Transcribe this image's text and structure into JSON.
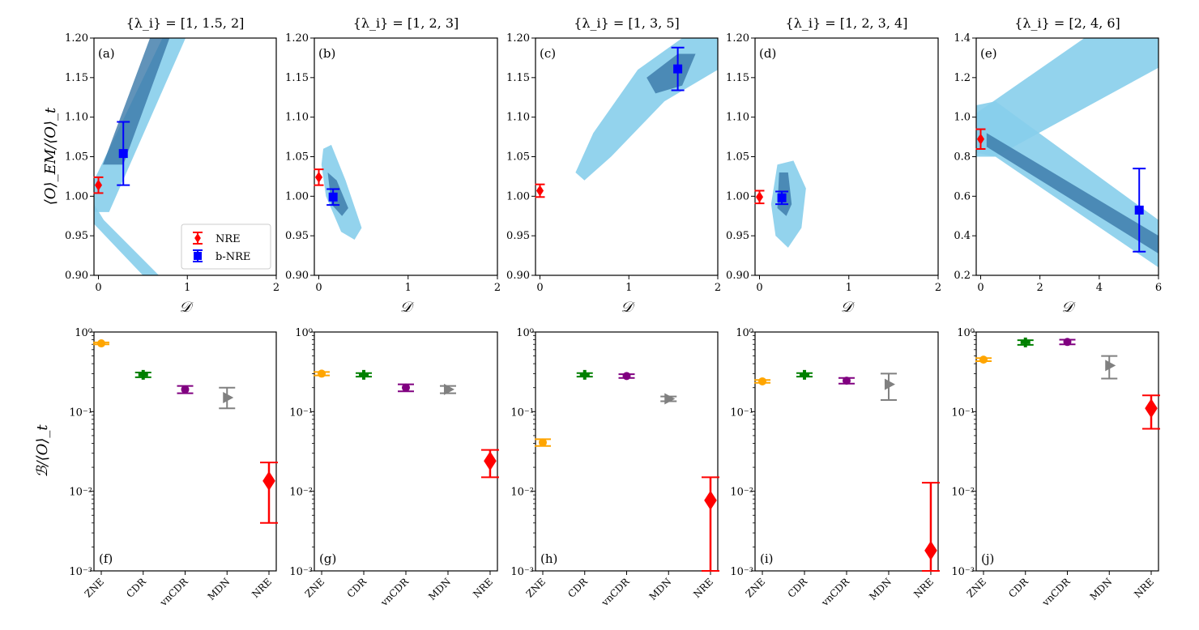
{
  "colors": {
    "nre": "#ff0000",
    "bnre": "#0000ff",
    "band_light": "#87ceeb",
    "band_dark": "#3a78a8",
    "zne": "#ffa500",
    "cdr": "#008000",
    "vncdr": "#800080",
    "mdn": "#808080"
  },
  "legend": {
    "nre_label": "NRE",
    "bnre_label": "b-NRE"
  },
  "top_panels": [
    {
      "label": "(a)",
      "title": "{λ_i} = [1, 1.5, 2]",
      "xlabel": "𝒟",
      "ylabel": "⟨O⟩_EM/⟨O⟩_t",
      "xlim": [
        -0.05,
        2
      ],
      "ylim": [
        0.9,
        1.2
      ],
      "xticks": [
        "0",
        "1",
        "2"
      ],
      "xtick_vals": [
        0,
        1,
        2
      ],
      "yticks": [
        "0.90",
        "0.95",
        "1.00",
        "1.05",
        "1.10",
        "1.15",
        "1.20"
      ],
      "ytick_vals": [
        0.9,
        0.95,
        1.0,
        1.05,
        1.1,
        1.15,
        1.2
      ],
      "nre": {
        "x": 0.0,
        "y": 1.014,
        "lo": 1.004,
        "hi": 1.024
      },
      "bnre": {
        "x": 0.28,
        "y": 1.054,
        "lo": 1.014,
        "hi": 1.094
      },
      "show_legend": true,
      "bands": [
        {
          "light": [
            [
              -0.05,
              1.02
            ],
            [
              0.72,
              1.2
            ],
            [
              0.98,
              1.2
            ],
            [
              0.12,
              0.98
            ],
            [
              -0.05,
              0.98
            ]
          ],
          "dark": [
            [
              0.05,
              1.04
            ],
            [
              0.58,
              1.2
            ],
            [
              0.8,
              1.2
            ],
            [
              0.28,
              1.04
            ]
          ]
        },
        {
          "light": [
            [
              -0.05,
              0.99
            ],
            [
              0.06,
              0.97
            ],
            [
              0.68,
              0.9
            ],
            [
              0.5,
              0.9
            ],
            [
              -0.05,
              0.965
            ]
          ],
          "dark": []
        }
      ]
    },
    {
      "label": "(b)",
      "title": "{λ_i} = [1, 2, 3]",
      "xlabel": "𝒟",
      "ylabel": "",
      "xlim": [
        -0.05,
        2
      ],
      "ylim": [
        0.9,
        1.2
      ],
      "xticks": [
        "0",
        "1",
        "2"
      ],
      "xtick_vals": [
        0,
        1,
        2
      ],
      "yticks": [
        "0.90",
        "0.95",
        "1.00",
        "1.05",
        "1.10",
        "1.15",
        "1.20"
      ],
      "ytick_vals": [
        0.9,
        0.95,
        1.0,
        1.05,
        1.1,
        1.15,
        1.2
      ],
      "nre": {
        "x": 0.0,
        "y": 1.024,
        "lo": 1.014,
        "hi": 1.034
      },
      "bnre": {
        "x": 0.16,
        "y": 0.999,
        "lo": 0.989,
        "hi": 1.009
      },
      "show_legend": false,
      "bands": [
        {
          "light": [
            [
              0.05,
              1.06
            ],
            [
              0.14,
              1.065
            ],
            [
              0.3,
              1.02
            ],
            [
              0.48,
              0.96
            ],
            [
              0.4,
              0.945
            ],
            [
              0.25,
              0.955
            ],
            [
              0.08,
              1.0
            ],
            [
              0.03,
              1.04
            ]
          ],
          "dark": [
            [
              0.1,
              1.03
            ],
            [
              0.2,
              1.02
            ],
            [
              0.33,
              0.985
            ],
            [
              0.26,
              0.975
            ],
            [
              0.14,
              0.99
            ]
          ]
        }
      ]
    },
    {
      "label": "(c)",
      "title": "{λ_i} = [1, 3, 5]",
      "xlabel": "𝒟",
      "ylabel": "",
      "xlim": [
        -0.05,
        2
      ],
      "ylim": [
        0.9,
        1.2
      ],
      "xticks": [
        "0",
        "1",
        "2"
      ],
      "xtick_vals": [
        0,
        1,
        2
      ],
      "yticks": [
        "0.90",
        "0.95",
        "1.00",
        "1.05",
        "1.10",
        "1.15",
        "1.20"
      ],
      "ytick_vals": [
        0.9,
        0.95,
        1.0,
        1.05,
        1.1,
        1.15,
        1.2
      ],
      "nre": {
        "x": 0.0,
        "y": 1.007,
        "lo": 0.999,
        "hi": 1.015
      },
      "bnre": {
        "x": 1.55,
        "y": 1.161,
        "lo": 1.134,
        "hi": 1.188
      },
      "show_legend": false,
      "bands": [
        {
          "light": [
            [
              0.4,
              1.03
            ],
            [
              0.6,
              1.08
            ],
            [
              1.1,
              1.16
            ],
            [
              1.6,
              1.2
            ],
            [
              2.0,
              1.2
            ],
            [
              2.0,
              1.16
            ],
            [
              1.4,
              1.12
            ],
            [
              0.8,
              1.05
            ],
            [
              0.5,
              1.02
            ]
          ],
          "dark": [
            [
              1.2,
              1.15
            ],
            [
              1.55,
              1.18
            ],
            [
              1.75,
              1.18
            ],
            [
              1.6,
              1.14
            ],
            [
              1.3,
              1.13
            ]
          ]
        }
      ]
    },
    {
      "label": "(d)",
      "title": "{λ_i} = [1, 2, 3, 4]",
      "xlabel": "𝒟",
      "ylabel": "",
      "xlim": [
        -0.05,
        2
      ],
      "ylim": [
        0.9,
        1.2
      ],
      "xticks": [
        "0",
        "1",
        "2"
      ],
      "xtick_vals": [
        0,
        1,
        2
      ],
      "yticks": [
        "0.90",
        "0.95",
        "1.00",
        "1.05",
        "1.10",
        "1.15",
        "1.20"
      ],
      "ytick_vals": [
        0.9,
        0.95,
        1.0,
        1.05,
        1.1,
        1.15,
        1.2
      ],
      "nre": {
        "x": 0.0,
        "y": 0.999,
        "lo": 0.991,
        "hi": 1.007
      },
      "bnre": {
        "x": 0.25,
        "y": 0.998,
        "lo": 0.99,
        "hi": 1.006
      },
      "show_legend": false,
      "bands": [
        {
          "light": [
            [
              0.2,
              1.04
            ],
            [
              0.38,
              1.045
            ],
            [
              0.52,
              1.01
            ],
            [
              0.47,
              0.96
            ],
            [
              0.32,
              0.935
            ],
            [
              0.18,
              0.95
            ],
            [
              0.13,
              0.99
            ]
          ],
          "dark": [
            [
              0.22,
              1.03
            ],
            [
              0.32,
              1.03
            ],
            [
              0.36,
              0.99
            ],
            [
              0.3,
              0.975
            ],
            [
              0.2,
              0.985
            ]
          ]
        }
      ]
    },
    {
      "label": "(e)",
      "title": "{λ_i} = [2, 4, 6]",
      "xlabel": "𝒟",
      "ylabel": "",
      "xlim": [
        -0.15,
        6
      ],
      "ylim": [
        0.2,
        1.4
      ],
      "xticks": [
        "0",
        "2",
        "4",
        "6"
      ],
      "xtick_vals": [
        0,
        2,
        4,
        6
      ],
      "yticks": [
        "0.2",
        "0.4",
        "0.6",
        "0.8",
        "1.0",
        "1.2",
        "1.4"
      ],
      "ytick_vals": [
        0.2,
        0.4,
        0.6,
        0.8,
        1.0,
        1.2,
        1.4
      ],
      "nre": {
        "x": 0.0,
        "y": 0.889,
        "lo": 0.839,
        "hi": 0.939
      },
      "bnre": {
        "x": 5.35,
        "y": 0.53,
        "lo": 0.32,
        "hi": 0.74
      },
      "show_legend": false,
      "bands": [
        {
          "light": [
            [
              -0.15,
              1.02
            ],
            [
              3.5,
              1.4
            ],
            [
              6.0,
              1.4
            ],
            [
              6.0,
              1.25
            ],
            [
              0.5,
              0.8
            ],
            [
              -0.15,
              0.8
            ]
          ],
          "dark": []
        },
        {
          "light": [
            [
              -0.15,
              1.06
            ],
            [
              0.5,
              1.08
            ],
            [
              6.0,
              0.48
            ],
            [
              6.0,
              0.24
            ],
            [
              0.5,
              0.8
            ],
            [
              -0.15,
              0.82
            ]
          ],
          "dark": [
            [
              0.2,
              0.92
            ],
            [
              6.0,
              0.4
            ],
            [
              6.0,
              0.31
            ],
            [
              0.2,
              0.85
            ]
          ]
        }
      ]
    }
  ],
  "bottom_panels": {
    "ylabel": "ℬ/⟨O⟩_t",
    "categories": [
      "ZNE",
      "CDR",
      "vnCDR",
      "MDN",
      "NRE"
    ],
    "ylim": [
      0.001,
      1
    ],
    "yticks": [
      "10⁰",
      "10⁻¹",
      "10⁻²",
      "10⁻³"
    ],
    "ytick_vals": [
      1,
      0.1,
      0.01,
      0.001
    ],
    "panels": [
      {
        "label": "(f)",
        "points": [
          {
            "method": "ZNE",
            "y": 0.72,
            "lo": 0.7,
            "hi": 0.74
          },
          {
            "method": "CDR",
            "y": 0.29,
            "lo": 0.27,
            "hi": 0.31
          },
          {
            "method": "vnCDR",
            "y": 0.19,
            "lo": 0.17,
            "hi": 0.21
          },
          {
            "method": "MDN",
            "y": 0.15,
            "lo": 0.11,
            "hi": 0.2
          },
          {
            "method": "NRE",
            "y": 0.0135,
            "lo": 0.004,
            "hi": 0.023
          }
        ]
      },
      {
        "label": "(g)",
        "points": [
          {
            "method": "ZNE",
            "y": 0.3,
            "lo": 0.285,
            "hi": 0.315
          },
          {
            "method": "CDR",
            "y": 0.29,
            "lo": 0.275,
            "hi": 0.305
          },
          {
            "method": "vnCDR",
            "y": 0.2,
            "lo": 0.18,
            "hi": 0.22
          },
          {
            "method": "MDN",
            "y": 0.19,
            "lo": 0.17,
            "hi": 0.21
          },
          {
            "method": "NRE",
            "y": 0.024,
            "lo": 0.015,
            "hi": 0.033
          }
        ]
      },
      {
        "label": "(h)",
        "points": [
          {
            "method": "ZNE",
            "y": 0.041,
            "lo": 0.037,
            "hi": 0.045
          },
          {
            "method": "CDR",
            "y": 0.29,
            "lo": 0.275,
            "hi": 0.305
          },
          {
            "method": "vnCDR",
            "y": 0.28,
            "lo": 0.265,
            "hi": 0.295
          },
          {
            "method": "MDN",
            "y": 0.145,
            "lo": 0.135,
            "hi": 0.155
          },
          {
            "method": "NRE",
            "y": 0.0077,
            "lo": 0.001,
            "hi": 0.015
          }
        ]
      },
      {
        "label": "(i)",
        "points": [
          {
            "method": "ZNE",
            "y": 0.24,
            "lo": 0.23,
            "hi": 0.25
          },
          {
            "method": "CDR",
            "y": 0.29,
            "lo": 0.275,
            "hi": 0.305
          },
          {
            "method": "vnCDR",
            "y": 0.245,
            "lo": 0.225,
            "hi": 0.265
          },
          {
            "method": "MDN",
            "y": 0.22,
            "lo": 0.14,
            "hi": 0.3
          },
          {
            "method": "NRE",
            "y": 0.0018,
            "lo": 0.001,
            "hi": 0.0128
          }
        ]
      },
      {
        "label": "(j)",
        "points": [
          {
            "method": "ZNE",
            "y": 0.45,
            "lo": 0.43,
            "hi": 0.47
          },
          {
            "method": "CDR",
            "y": 0.74,
            "lo": 0.69,
            "hi": 0.79
          },
          {
            "method": "vnCDR",
            "y": 0.75,
            "lo": 0.7,
            "hi": 0.8
          },
          {
            "method": "MDN",
            "y": 0.38,
            "lo": 0.26,
            "hi": 0.5
          },
          {
            "method": "NRE",
            "y": 0.11,
            "lo": 0.061,
            "hi": 0.16
          }
        ]
      }
    ]
  },
  "chart_data": [
    {
      "type": "scatter",
      "panel": "(a)",
      "title": "{λ_i} = [1, 1.5, 2]",
      "xlabel": "𝒟",
      "ylabel": "⟨O⟩_EM/⟨O⟩_t",
      "xlim": [
        0,
        2
      ],
      "ylim": [
        0.9,
        1.2
      ],
      "series": [
        {
          "name": "NRE",
          "x": [
            0.0
          ],
          "y": [
            1.014
          ],
          "err": [
            0.01
          ]
        },
        {
          "name": "b-NRE",
          "x": [
            0.28
          ],
          "y": [
            1.054
          ],
          "err": [
            0.04
          ]
        }
      ]
    },
    {
      "type": "scatter",
      "panel": "(b)",
      "title": "{λ_i} = [1, 2, 3]",
      "xlabel": "𝒟",
      "xlim": [
        0,
        2
      ],
      "ylim": [
        0.9,
        1.2
      ],
      "series": [
        {
          "name": "NRE",
          "x": [
            0.0
          ],
          "y": [
            1.024
          ],
          "err": [
            0.01
          ]
        },
        {
          "name": "b-NRE",
          "x": [
            0.16
          ],
          "y": [
            0.999
          ],
          "err": [
            0.01
          ]
        }
      ]
    },
    {
      "type": "scatter",
      "panel": "(c)",
      "title": "{λ_i} = [1, 3, 5]",
      "xlabel": "𝒟",
      "xlim": [
        0,
        2
      ],
      "ylim": [
        0.9,
        1.2
      ],
      "series": [
        {
          "name": "NRE",
          "x": [
            0.0
          ],
          "y": [
            1.007
          ],
          "err": [
            0.008
          ]
        },
        {
          "name": "b-NRE",
          "x": [
            1.55
          ],
          "y": [
            1.161
          ],
          "err": [
            0.027
          ]
        }
      ]
    },
    {
      "type": "scatter",
      "panel": "(d)",
      "title": "{λ_i} = [1, 2, 3, 4]",
      "xlabel": "𝒟",
      "xlim": [
        0,
        2
      ],
      "ylim": [
        0.9,
        1.2
      ],
      "series": [
        {
          "name": "NRE",
          "x": [
            0.0
          ],
          "y": [
            0.999
          ],
          "err": [
            0.008
          ]
        },
        {
          "name": "b-NRE",
          "x": [
            0.25
          ],
          "y": [
            0.998
          ],
          "err": [
            0.008
          ]
        }
      ]
    },
    {
      "type": "scatter",
      "panel": "(e)",
      "title": "{λ_i} = [2, 4, 6]",
      "xlabel": "𝒟",
      "xlim": [
        0,
        6
      ],
      "ylim": [
        0.2,
        1.4
      ],
      "series": [
        {
          "name": "NRE",
          "x": [
            0.0
          ],
          "y": [
            0.889
          ],
          "err": [
            0.05
          ]
        },
        {
          "name": "b-NRE",
          "x": [
            5.35
          ],
          "y": [
            0.53
          ],
          "err": [
            0.21
          ]
        }
      ]
    },
    {
      "type": "scatter",
      "panel": "(f)-(j)",
      "ylabel": "ℬ/⟨O⟩_t",
      "yscale": "log",
      "ylim": [
        0.001,
        1
      ],
      "categories": [
        "ZNE",
        "CDR",
        "vnCDR",
        "MDN",
        "NRE"
      ],
      "series": [
        {
          "name": "(f)",
          "values": [
            0.72,
            0.29,
            0.19,
            0.15,
            0.0135
          ]
        },
        {
          "name": "(g)",
          "values": [
            0.3,
            0.29,
            0.2,
            0.19,
            0.024
          ]
        },
        {
          "name": "(h)",
          "values": [
            0.041,
            0.29,
            0.28,
            0.145,
            0.0077
          ]
        },
        {
          "name": "(i)",
          "values": [
            0.24,
            0.29,
            0.245,
            0.22,
            0.0018
          ]
        },
        {
          "name": "(j)",
          "values": [
            0.45,
            0.74,
            0.75,
            0.38,
            0.11
          ]
        }
      ]
    }
  ]
}
